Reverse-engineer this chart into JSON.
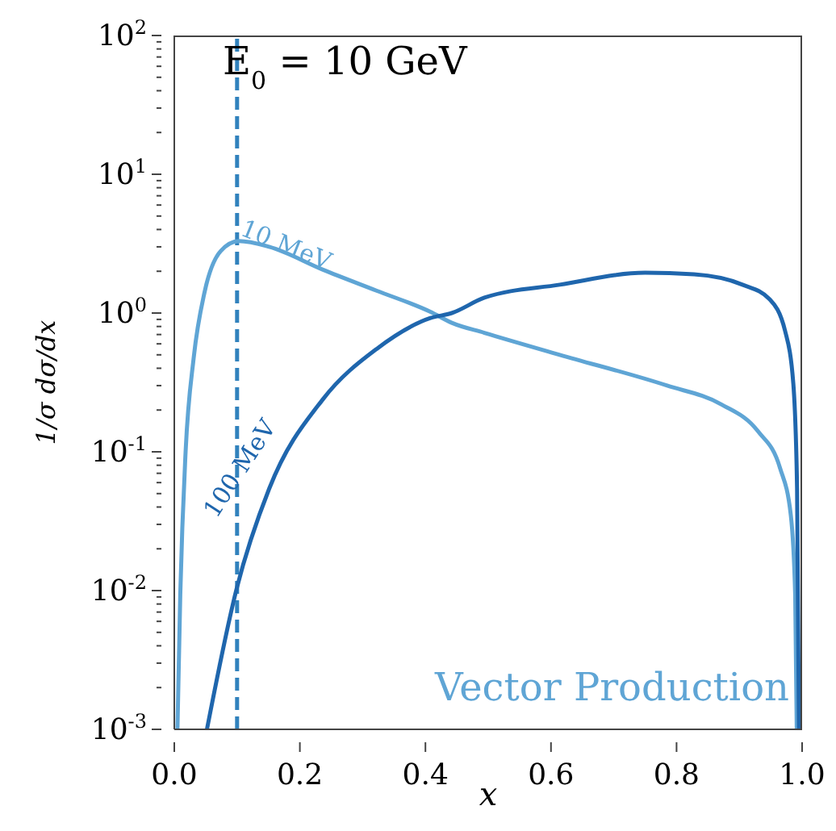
{
  "chart_data": {
    "type": "line",
    "xlabel": "x",
    "ylabel": "1/σ dσ/dx",
    "log": "y",
    "grid": false,
    "legend": false,
    "marker": "none",
    "line_style": "solid",
    "xlim": [
      0,
      1
    ],
    "xticks": [
      {
        "value": 0,
        "label": "0.0"
      },
      {
        "value": 0.2,
        "label": "0.2"
      },
      {
        "value": 0.4,
        "label": "0.4"
      },
      {
        "value": 0.6,
        "label": "0.6"
      },
      {
        "value": 0.8,
        "label": "0.8"
      },
      {
        "value": 1,
        "label": "1.0"
      }
    ],
    "ylim": [
      0.001,
      100
    ],
    "yticks": [
      {
        "value": 0.001,
        "label": "10$^{-3}$"
      },
      {
        "value": 0.002,
        "label": null
      },
      {
        "value": 0.003,
        "label": null
      },
      {
        "value": 0.004,
        "label": null
      },
      {
        "value": 0.005,
        "label": null
      },
      {
        "value": 0.006,
        "label": null
      },
      {
        "value": 0.007,
        "label": null
      },
      {
        "value": 0.008,
        "label": null
      },
      {
        "value": 0.009,
        "label": null
      },
      {
        "value": 0.01,
        "label": "10$^{-2}$"
      },
      {
        "value": 0.02,
        "label": null
      },
      {
        "value": 0.03,
        "label": null
      },
      {
        "value": 0.04,
        "label": null
      },
      {
        "value": 0.05,
        "label": null
      },
      {
        "value": 0.06,
        "label": null
      },
      {
        "value": 0.07,
        "label": null
      },
      {
        "value": 0.08,
        "label": null
      },
      {
        "value": 0.09,
        "label": null
      },
      {
        "value": 0.1,
        "label": "10$^{-1}$"
      },
      {
        "value": 0.2,
        "label": null
      },
      {
        "value": 0.3,
        "label": null
      },
      {
        "value": 0.4,
        "label": null
      },
      {
        "value": 0.5,
        "label": null
      },
      {
        "value": 0.6,
        "label": null
      },
      {
        "value": 0.7,
        "label": null
      },
      {
        "value": 0.8,
        "label": null
      },
      {
        "value": 0.9,
        "label": null
      },
      {
        "value": 1,
        "label": "10$^{0}$"
      },
      {
        "value": 2,
        "label": null
      },
      {
        "value": 3,
        "label": null
      },
      {
        "value": 4,
        "label": null
      },
      {
        "value": 5,
        "label": null
      },
      {
        "value": 6,
        "label": null
      },
      {
        "value": 7,
        "label": null
      },
      {
        "value": 8,
        "label": null
      },
      {
        "value": 9,
        "label": null
      },
      {
        "value": 10,
        "label": "10$^{1}$"
      },
      {
        "value": 20,
        "label": null
      },
      {
        "value": 30,
        "label": null
      },
      {
        "value": 40,
        "label": null
      },
      {
        "value": 50,
        "label": null
      },
      {
        "value": 60,
        "label": null
      },
      {
        "value": 70,
        "label": null
      },
      {
        "value": 80,
        "label": null
      },
      {
        "value": 90,
        "label": null
      },
      {
        "value": 100,
        "label": "10$^{2}$"
      }
    ],
    "series": [
      {
        "name": "10 MeV",
        "color": "#5fa5d5",
        "x": [
          0.005,
          0.0095,
          0.018,
          0.031,
          0.048,
          0.074,
          0.103,
          0.151,
          0.237,
          0.322,
          0.408,
          0.442,
          0.494,
          0.614,
          0.785,
          0.871,
          0.93,
          0.965,
          0.982,
          0.989,
          0.9915
        ],
        "values": [
          0.001,
          0.0093,
          0.1,
          0.48,
          1.4,
          2.8,
          3.3,
          3.0,
          2.05,
          1.45,
          1.02,
          0.85,
          0.72,
          0.5,
          0.3,
          0.22,
          0.14,
          0.076,
          0.035,
          0.0093,
          0.001
        ]
      },
      {
        "name": "100 MeV",
        "color": "#1f66ad",
        "x": [
          0.052,
          0.099,
          0.151,
          0.237,
          0.322,
          0.408,
          0.442,
          0.494,
          0.614,
          0.75,
          0.828,
          0.905,
          0.948,
          0.973,
          0.986,
          0.992,
          0.995
        ],
        "values": [
          0.001,
          0.0102,
          0.054,
          0.24,
          0.55,
          0.92,
          1.0,
          1.29,
          1.6,
          1.95,
          1.9,
          1.6,
          1.26,
          0.74,
          0.31,
          0.054,
          0.001
        ]
      }
    ],
    "ref_lines": [
      {
        "axis": "x",
        "value": 0.1,
        "color": "#3182bd",
        "line_style": "dashed"
      }
    ],
    "annotations": [
      "E$_{0}$ = 10 GeV",
      "Vector Production"
    ]
  }
}
